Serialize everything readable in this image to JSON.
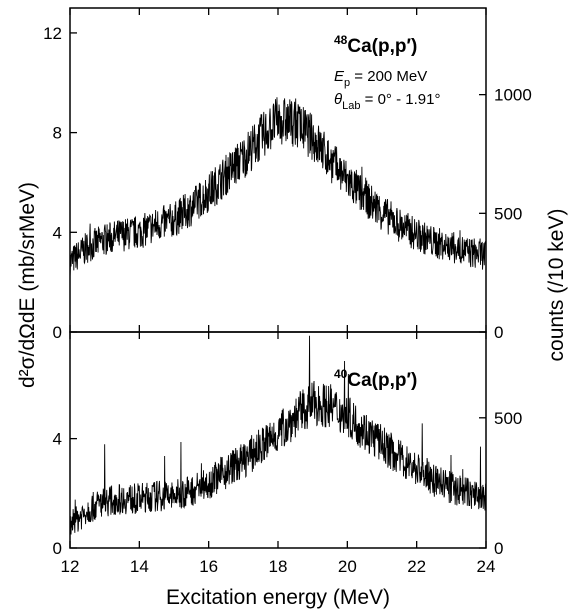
{
  "chart_data": [
    {
      "type": "line",
      "panel": "top",
      "label": "48Ca(p,p')",
      "label_parts": {
        "mass": "48",
        "rest": "Ca(p,p",
        "prime": "′",
        "close": ")"
      },
      "annotations": {
        "energy": {
          "symbol": "E",
          "sub": "p",
          "text": " = 200 MeV"
        },
        "angle": {
          "symbol": "θ",
          "sub": "Lab",
          "text": " = 0° - 1.91°"
        }
      },
      "xlim": [
        12,
        24
      ],
      "ylim": [
        0,
        13
      ],
      "right_axis_scale": 105,
      "left_ticks": [
        "0",
        "4",
        "8",
        "12"
      ],
      "right_ticks": [
        "0",
        "500",
        "1000"
      ],
      "series": [
        {
          "x": [
            12.0,
            12.5,
            13.0,
            13.5,
            14.0,
            14.5,
            15.0,
            15.5,
            16.0,
            16.5,
            17.0,
            17.5,
            18.0,
            18.5,
            19.0,
            19.5,
            20.0,
            20.5,
            21.0,
            21.5,
            22.0,
            22.5,
            23.0,
            23.5,
            24.0
          ],
          "y": [
            2.8,
            3.4,
            3.7,
            3.9,
            4.0,
            4.3,
            4.5,
            5.0,
            5.6,
            6.3,
            7.0,
            7.8,
            8.5,
            8.4,
            7.8,
            6.9,
            6.1,
            5.4,
            4.8,
            4.3,
            3.9,
            3.6,
            3.4,
            3.2,
            3.1
          ]
        }
      ]
    },
    {
      "type": "line",
      "panel": "bottom",
      "label": "40Ca(p,p')",
      "label_parts": {
        "mass": "40",
        "rest": "Ca(p,p",
        "prime": "′",
        "close": ")"
      },
      "xlim": [
        12,
        24
      ],
      "ylim": [
        0,
        7.9
      ],
      "right_axis_scale": 105,
      "left_ticks": [
        "0",
        "4"
      ],
      "right_ticks": [
        "0",
        "500"
      ],
      "series": [
        {
          "x": [
            12.0,
            12.5,
            13.0,
            13.5,
            14.0,
            14.5,
            15.0,
            15.5,
            16.0,
            16.5,
            17.0,
            17.5,
            18.0,
            18.5,
            19.0,
            19.5,
            20.0,
            20.5,
            21.0,
            21.5,
            22.0,
            22.5,
            23.0,
            23.5,
            24.0
          ],
          "y": [
            0.8,
            1.4,
            1.7,
            1.8,
            1.8,
            1.9,
            1.9,
            2.1,
            2.4,
            2.8,
            3.2,
            3.7,
            4.2,
            4.8,
            5.3,
            5.2,
            4.8,
            4.3,
            3.8,
            3.3,
            2.9,
            2.5,
            2.2,
            2.0,
            1.8
          ]
        }
      ]
    }
  ],
  "axes": {
    "x_ticks": [
      "12",
      "14",
      "16",
      "18",
      "20",
      "22",
      "24"
    ],
    "xlabel": "Excitation energy (MeV)",
    "ylabel_left": "d²σ/dΩdE (mb/srMeV)",
    "ylabel_right": "counts (/10 keV)"
  }
}
